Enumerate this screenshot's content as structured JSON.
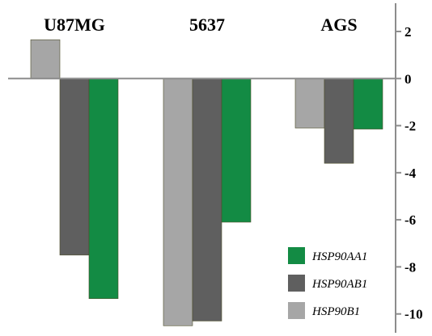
{
  "chart_data": {
    "type": "bar",
    "categories": [
      "U87MG",
      "5637",
      "AGS"
    ],
    "series": [
      {
        "name": "HSP90B1",
        "color": "#a6a6a6",
        "values": [
          1.65,
          -10.5,
          -2.1
        ]
      },
      {
        "name": "HSP90AB1",
        "color": "#5f5f5f",
        "values": [
          -7.5,
          -10.3,
          -3.6
        ]
      },
      {
        "name": "HSP90AA1",
        "color": "#138b44",
        "values": [
          -9.35,
          -6.1,
          -2.15
        ]
      }
    ],
    "legend": [
      "HSP90AA1",
      "HSP90AB1",
      "HSP90B1"
    ],
    "ylim": [
      -10.8,
      3.2
    ],
    "yticks": [
      2,
      0,
      -2,
      -4,
      -6,
      -8,
      -10
    ],
    "y_axis_position": "right",
    "legend_position": "bottom-right",
    "grid": false,
    "title": "",
    "xlabel": "",
    "ylabel": ""
  }
}
